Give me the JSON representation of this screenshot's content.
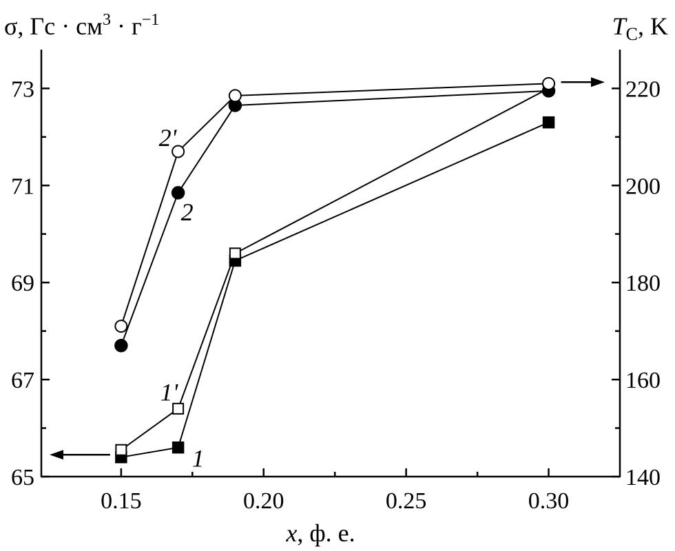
{
  "chart_data": {
    "type": "line",
    "title": "",
    "xlabel": {
      "var": "x",
      "rest": ", ф. е."
    },
    "ylabel_left": {
      "main": "σ, Гс · см",
      "sup1": "3",
      "mid": " · г",
      "sup2": "−1"
    },
    "ylabel_right": {
      "var": "T",
      "sub": "C",
      "rest": ", K"
    },
    "xlim": [
      0.122,
      0.325
    ],
    "ylim_left": [
      65,
      73.8
    ],
    "ylim_right": [
      140,
      228
    ],
    "x_ticks": [
      0.15,
      0.2,
      0.25,
      0.3
    ],
    "x_tick_labels": [
      "0.15",
      "0.20",
      "0.25",
      "0.30"
    ],
    "y_left_ticks": [
      65,
      67,
      69,
      71,
      73
    ],
    "y_left_tick_labels": [
      "65",
      "67",
      "69",
      "71",
      "73"
    ],
    "y_right_ticks": [
      140,
      160,
      180,
      200,
      220
    ],
    "y_right_tick_labels": [
      "140",
      "160",
      "180",
      "200",
      "220"
    ],
    "series": [
      {
        "name": "1",
        "axis": "left",
        "marker": "square-filled",
        "x": [
          0.15,
          0.17,
          0.19,
          0.3
        ],
        "y": [
          65.4,
          65.6,
          69.45,
          72.3
        ]
      },
      {
        "name": "1'",
        "axis": "left",
        "marker": "square-open",
        "x": [
          0.15,
          0.17,
          0.19,
          0.3
        ],
        "y": [
          65.55,
          66.4,
          69.6,
          73.0
        ]
      },
      {
        "name": "2",
        "axis": "right",
        "marker": "circle-filled",
        "x": [
          0.15,
          0.17,
          0.19,
          0.3
        ],
        "y": [
          167,
          198.5,
          216.5,
          219.5
        ]
      },
      {
        "name": "2'",
        "axis": "right",
        "marker": "circle-open",
        "x": [
          0.15,
          0.17,
          0.19,
          0.3
        ],
        "y": [
          171,
          207,
          218.5,
          221
        ]
      }
    ],
    "arrows": [
      {
        "series": "1, 1'",
        "points_to": "left"
      },
      {
        "series": "2, 2'",
        "points_to": "right"
      }
    ],
    "grid": false,
    "legend": "none"
  }
}
